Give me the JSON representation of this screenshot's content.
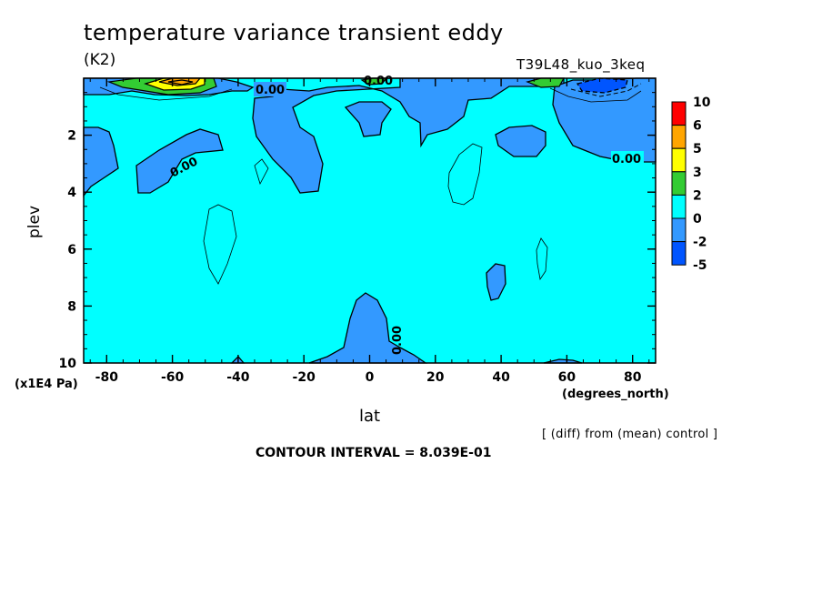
{
  "header": {
    "title": "temperature variance transient eddy",
    "units": "(K2)",
    "experiment": "T39L48_kuo_3keq"
  },
  "footer": {
    "note": "[ (diff) from (mean) control ]",
    "contour_interval": "CONTOUR INTERVAL = 8.039E-01"
  },
  "colors": {
    "red": "#ff0000",
    "orange": "#ffa500",
    "yellow": "#ffff00",
    "green": "#33cc33",
    "cyan": "#00ffff",
    "blue_light": "#3399ff",
    "blue_dark": "#0055ff"
  },
  "chart_data": {
    "type": "heatmap",
    "title": "temperature variance transient eddy",
    "subtitle": "(K2)",
    "xlabel": "lat",
    "xunits": "(degrees_north)",
    "ylabel": "plev",
    "yunits": "(x1E4 Pa)",
    "xlim": [
      -87,
      87
    ],
    "ylim": [
      10,
      0
    ],
    "xticks": [
      "-80",
      "-60",
      "-40",
      "-20",
      "0",
      "20",
      "40",
      "60",
      "80"
    ],
    "yticks": [
      "2",
      "4",
      "6",
      "8",
      "10"
    ],
    "legend": {
      "placement": "right",
      "levels": [
        "10",
        "6",
        "5",
        "3",
        "2",
        "0",
        "-2",
        "-5"
      ],
      "colors": [
        "#ff0000",
        "#ffa500",
        "#ffff00",
        "#33cc33",
        "#00ffff",
        "#3399ff",
        "#0055ff"
      ]
    },
    "contour_labels": [
      {
        "text": "0.00",
        "lat": -37,
        "plev": 0.7
      },
      {
        "text": "0.00",
        "lat": -57,
        "plev": 3.3
      },
      {
        "text": "0.00",
        "lat": 3,
        "plev": 0.1
      },
      {
        "text": "0.00",
        "lat": 78,
        "plev": 2.9
      },
      {
        "text": "0.00",
        "lat": 9,
        "plev": 9.1
      }
    ],
    "background_value_range": "0 to 2"
  }
}
